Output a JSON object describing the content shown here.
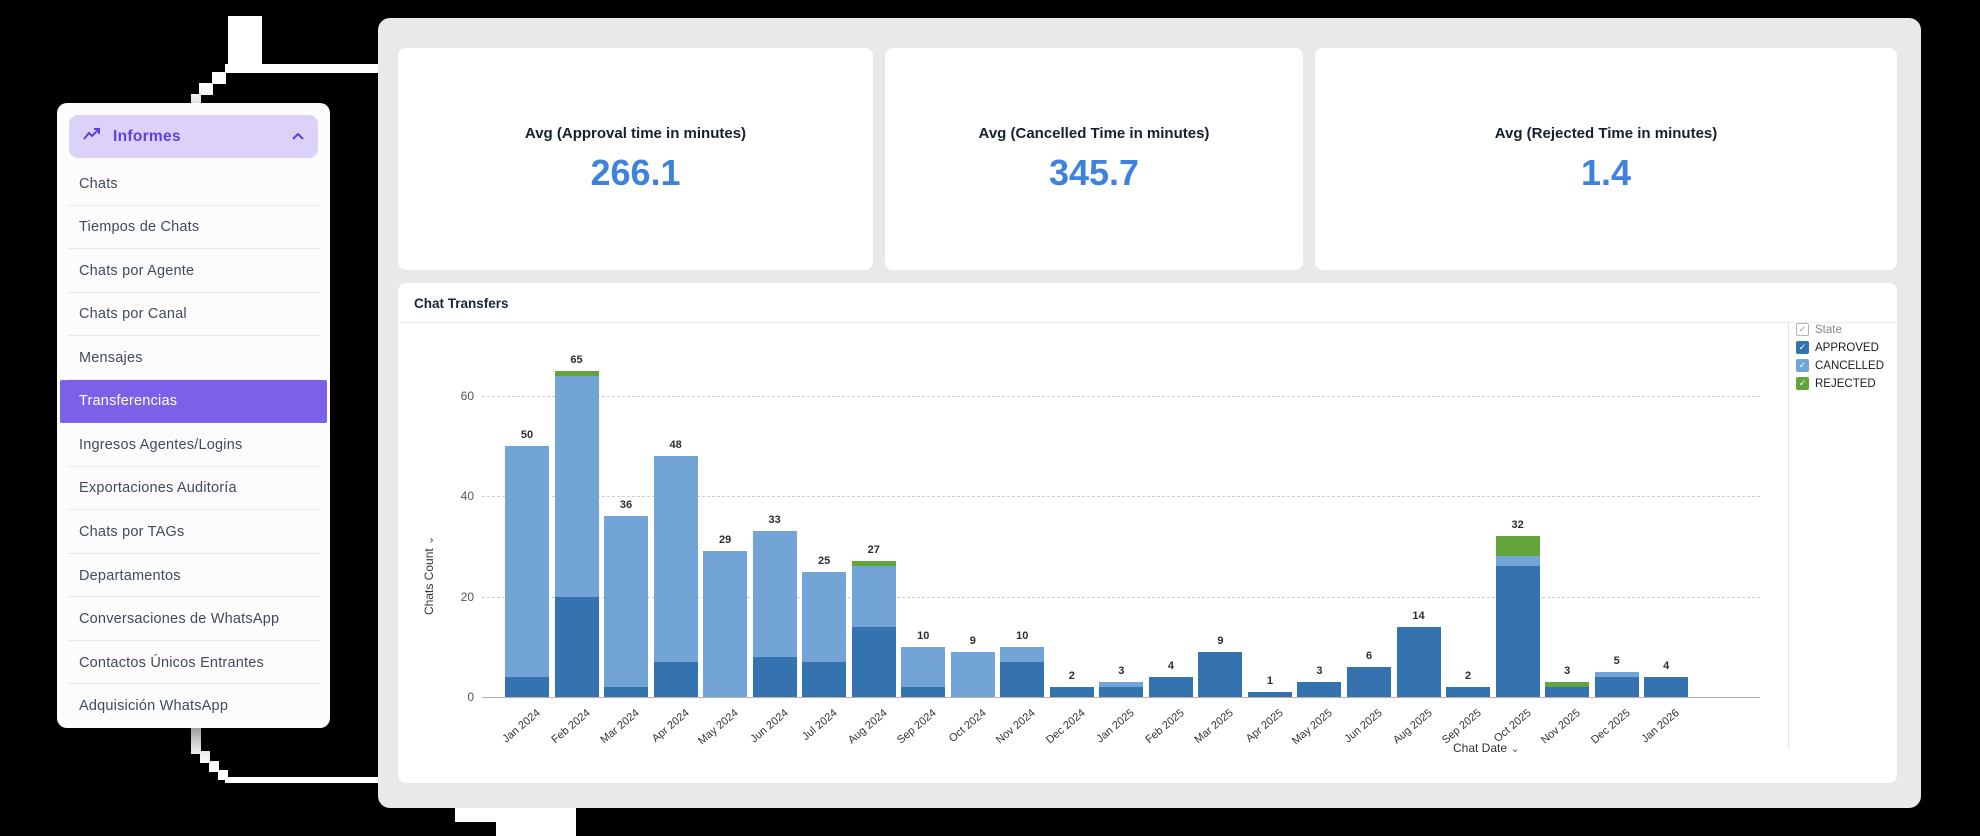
{
  "glyphs": {
    "chevron_down": "⌄",
    "check": "✓"
  },
  "sidebar": {
    "header": {
      "label": "Informes"
    },
    "items": [
      {
        "label": "Chats"
      },
      {
        "label": "Tiempos de Chats"
      },
      {
        "label": "Chats por Agente"
      },
      {
        "label": "Chats por Canal"
      },
      {
        "label": "Mensajes"
      },
      {
        "label": "Transferencias",
        "selected": true
      },
      {
        "label": "Ingresos Agentes/Logins"
      },
      {
        "label": "Exportaciones Auditoría"
      },
      {
        "label": "Chats por TAGs"
      },
      {
        "label": "Departamentos"
      },
      {
        "label": "Conversaciones de WhatsApp"
      },
      {
        "label": "Contactos Únicos Entrantes"
      },
      {
        "label": "Adquisición WhatsApp"
      }
    ],
    "colors": {
      "header_bg": "#dcd2f8",
      "accent": "#5b42e0",
      "selected_bg": "#7a61e8"
    }
  },
  "kpi_cards": [
    {
      "title": "Avg (Approval time in minutes)",
      "value": "266.1"
    },
    {
      "title": "Avg (Cancelled Time in minutes)",
      "value": "345.7"
    },
    {
      "title": "Avg (Rejected Time in minutes)",
      "value": "1.4"
    }
  ],
  "kpi_value_color": "#3d82dc",
  "chart": {
    "title": "Chat Transfers",
    "xlabel": "Chat Date",
    "ylabel": "Chats Count",
    "legend_group": "State"
  },
  "chart_data": {
    "type": "bar",
    "stacked": true,
    "title": "Chat Transfers",
    "xlabel": "Chat Date",
    "ylabel": "Chats Count",
    "categories": [
      "Jan 2024",
      "Feb 2024",
      "Mar 2024",
      "Apr 2024",
      "May 2024",
      "Jun 2024",
      "Jul 2024",
      "Aug 2024",
      "Sep 2024",
      "Oct 2024",
      "Nov 2024",
      "Dec 2024",
      "Jan 2025",
      "Feb 2025",
      "Mar 2025",
      "Apr 2025",
      "May 2025",
      "Jun 2025",
      "Aug 2025",
      "Sep 2025",
      "Oct 2025",
      "Nov 2025",
      "Dec 2025",
      "Jan 2026"
    ],
    "series": [
      {
        "name": "APPROVED",
        "color": "#3572b0",
        "values": [
          4,
          20,
          2,
          7,
          0,
          8,
          7,
          14,
          2,
          0,
          7,
          2,
          2,
          4,
          9,
          1,
          3,
          6,
          14,
          2,
          26,
          2,
          4,
          4
        ]
      },
      {
        "name": "CANCELLED",
        "color": "#72a4d5",
        "values": [
          46,
          44,
          34,
          41,
          29,
          25,
          18,
          12,
          8,
          9,
          3,
          0,
          1,
          0,
          0,
          0,
          0,
          0,
          0,
          0,
          2,
          0,
          1,
          0
        ]
      },
      {
        "name": "REJECTED",
        "color": "#63a53c",
        "values": [
          0,
          1,
          0,
          0,
          0,
          0,
          0,
          1,
          0,
          0,
          0,
          0,
          0,
          0,
          0,
          0,
          0,
          0,
          0,
          0,
          4,
          1,
          0,
          0
        ]
      }
    ],
    "totals": [
      50,
      65,
      36,
      48,
      29,
      33,
      25,
      27,
      10,
      9,
      10,
      2,
      3,
      4,
      9,
      1,
      3,
      6,
      14,
      2,
      32,
      3,
      5,
      4
    ],
    "yticks": [
      0,
      20,
      40,
      60
    ],
    "ylim": [
      0,
      70
    ],
    "grid": "dashed-horizontal",
    "legend_position": "top-right"
  }
}
